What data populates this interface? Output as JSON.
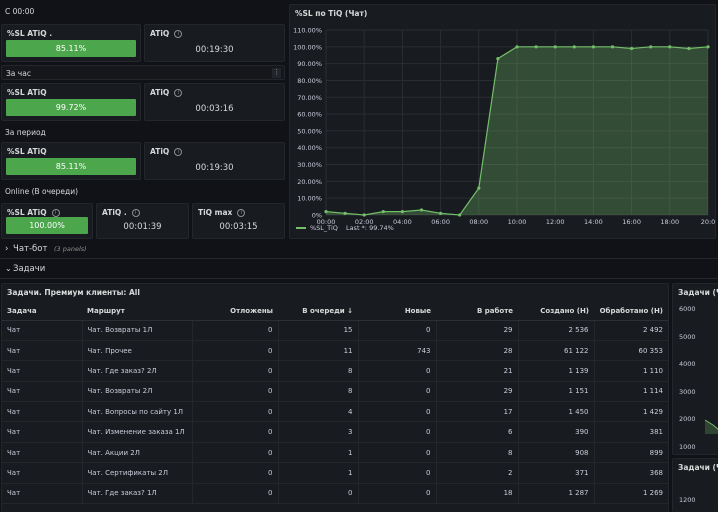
{
  "top_left": {
    "section_title": "С 00:00",
    "block1": {
      "sl_title": "%SL ATiQ .",
      "sl_value": "85.11%",
      "sl_pct": 85.11,
      "atiq_title": "ATiQ",
      "atiq_value": "00:19:30"
    },
    "hour_label": "За час",
    "block2": {
      "sl_title": "%SL ATiQ",
      "sl_value": "99.72%",
      "sl_pct": 99.72,
      "atiq_title": "ATiQ",
      "atiq_value": "00:03:16"
    },
    "period_label": "За период",
    "block3": {
      "sl_title": "%SL ATiQ",
      "sl_value": "85.11%",
      "sl_pct": 85.11,
      "atiq_title": "ATiQ",
      "atiq_value": "00:19:30"
    },
    "online_label": "Online (В очереди)",
    "block4": {
      "sl_title": "%SL ATiQ",
      "sl_value": "100.00%",
      "sl_pct": 100,
      "atiq_title": "ATiQ .",
      "atiq_value": "00:01:39",
      "tiq_title": "TiQ max",
      "tiq_value": "00:03:15"
    }
  },
  "chart_panel": {
    "title": "%SL по TiQ (Чат)",
    "legend_label": "%SL_TiQ",
    "legend_last": "Last *: 99.74%",
    "line_color": "#73bf69"
  },
  "chart_data": {
    "type": "area",
    "x": [
      "00:00",
      "01:00",
      "02:00",
      "03:00",
      "04:00",
      "05:00",
      "06:00",
      "07:00",
      "08:00",
      "09:00",
      "10:00",
      "11:00",
      "12:00",
      "13:00",
      "14:00",
      "15:00",
      "16:00",
      "17:00",
      "18:00",
      "19:00",
      "20:00"
    ],
    "series": [
      {
        "name": "%SL_TiQ",
        "values": [
          2,
          1,
          0,
          2,
          2,
          3,
          1,
          0,
          16,
          93,
          100,
          100,
          100,
          100,
          100,
          100,
          99,
          100,
          100,
          99,
          100
        ]
      }
    ],
    "x_ticks": [
      "00:00",
      "02:00",
      "04:00",
      "06:00",
      "08:00",
      "10:00",
      "12:00",
      "14:00",
      "16:00",
      "18:00",
      "20:0"
    ],
    "y_ticks": [
      "0%",
      "10.00%",
      "20.00%",
      "30.00%",
      "40.00%",
      "50.00%",
      "60.00%",
      "70.00%",
      "80.00%",
      "90.00%",
      "100.00%",
      "110.00%"
    ],
    "ylim": [
      0,
      110
    ],
    "grid": true,
    "legend": "bottom-left"
  },
  "rows": {
    "chatbot_label": "Чат-бот",
    "chatbot_panels": "(3 panels)",
    "tasks_label": "Задачи"
  },
  "table": {
    "title": "Задачи. Премиум клиенты: All",
    "headers": [
      "Задача",
      "Маршрут",
      "Отложены",
      "В очереди",
      "Новые",
      "В работе",
      "Создано (Н)",
      "Обработано (Н)"
    ],
    "sort_arrow": "↓",
    "rows": [
      [
        "Чат",
        "Чат. Возвраты 1Л",
        "0",
        "15",
        "0",
        "29",
        "2 536",
        "2 492"
      ],
      [
        "Чат",
        "Чат. Прочее",
        "0",
        "11",
        "743",
        "28",
        "61 122",
        "60 353"
      ],
      [
        "Чат",
        "Чат. Где заказ? 2Л",
        "0",
        "8",
        "0",
        "21",
        "1 139",
        "1 110"
      ],
      [
        "Чат",
        "Чат. Возвраты 2Л",
        "0",
        "8",
        "0",
        "29",
        "1 151",
        "1 114"
      ],
      [
        "Чат",
        "Чат. Вопросы по сайту 1Л",
        "0",
        "4",
        "0",
        "17",
        "1 450",
        "1 429"
      ],
      [
        "Чат",
        "Чат. Изменение заказа 1Л",
        "0",
        "3",
        "0",
        "6",
        "390",
        "381"
      ],
      [
        "Чат",
        "Чат. Акции 2Л",
        "0",
        "1",
        "0",
        "8",
        "908",
        "899"
      ],
      [
        "Чат",
        "Чат. Сертификаты 2Л",
        "0",
        "1",
        "0",
        "2",
        "371",
        "368"
      ],
      [
        "Чат",
        "Чат. Где заказ? 1Л",
        "0",
        "0",
        "0",
        "18",
        "1 287",
        "1 269"
      ]
    ]
  },
  "right_panel1": {
    "title": "Задачи (Ча",
    "y_ticks": [
      "6000",
      "5000",
      "4000",
      "3000",
      "2000",
      "1000"
    ]
  },
  "right_panel2": {
    "title": "Задачи (Ча",
    "y_ticks": [
      "1200"
    ]
  }
}
